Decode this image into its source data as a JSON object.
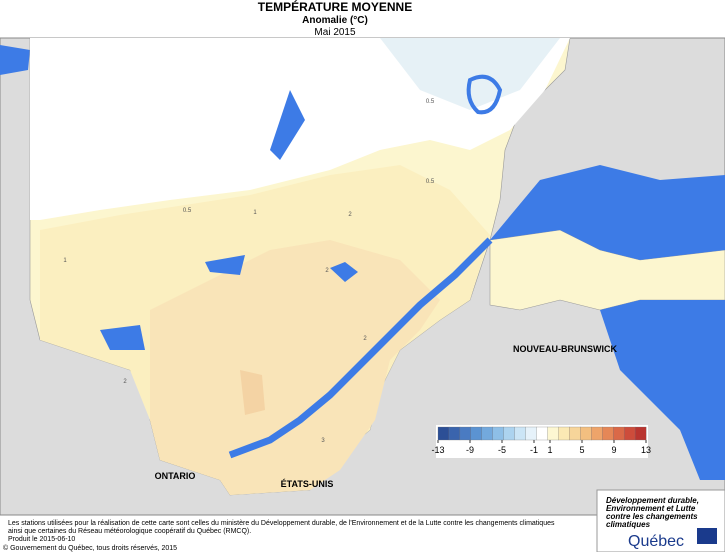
{
  "header": {
    "title": "TEMPÉRATURE MOYENNE",
    "subtitle": "Anomalie (°C)",
    "date": "Mai 2015"
  },
  "regions": [
    "ONTARIO",
    "ÉTATS-UNIS",
    "NOUVEAU-BRUNSWICK"
  ],
  "contour_labels": [
    0.5,
    0.5,
    0.5,
    1,
    1,
    2,
    2,
    2,
    2,
    3
  ],
  "legend": {
    "ticks": [
      -13,
      -9,
      -5,
      -1,
      1,
      5,
      9,
      13
    ],
    "colors": [
      "#2c4f96",
      "#3a64ad",
      "#4a7bc2",
      "#5b93d2",
      "#73a9dd",
      "#8ebfe7",
      "#acd3ef",
      "#cbe5f6",
      "#e6f2fa",
      "#ffffff",
      "#fdf7d2",
      "#fbe9b4",
      "#f7d59a",
      "#f3bf80",
      "#eea46a",
      "#e58757",
      "#da6948",
      "#cd4c3b",
      "#b93530"
    ]
  },
  "footer": {
    "note_lines": [
      "Les stations utilisées pour la réalisation de cette carte sont celles du ministère du Développement durable, de l'Environnement et de la Lutte contre les changements climatiques",
      "ainsi que certaines du Réseau météorologique coopératif du Québec (RMCQ)."
    ],
    "produced": "Produit le 2015-06-10",
    "copyright": "© Gouvernement du Québec, tous droits réservés, 2015"
  },
  "logo": {
    "lines": [
      "Développement durable,",
      "Environnement et Lutte",
      "contre les changements",
      "climatiques"
    ],
    "name": "Québec"
  }
}
